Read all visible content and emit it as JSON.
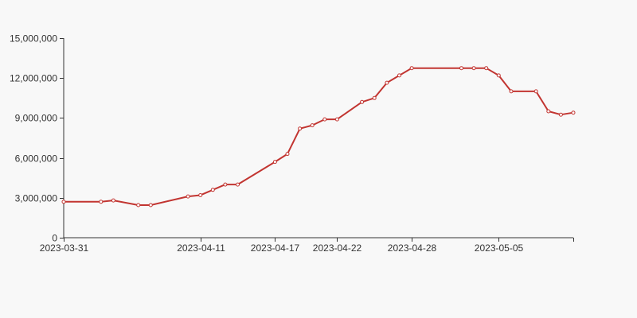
{
  "chart_data": {
    "type": "line",
    "title": "",
    "xlabel": "",
    "ylabel": "",
    "grid": false,
    "legend": "none",
    "ylim": [
      0,
      15000000
    ],
    "yticks": [
      0,
      3000000,
      6000000,
      9000000,
      12000000,
      15000000
    ],
    "ytick_labels": [
      "0",
      "3,000,000",
      "6,000,000",
      "9,000,000",
      "12,000,000",
      "15,000,000"
    ],
    "xlim": [
      "2023-03-31",
      "2023-05-11"
    ],
    "xticks": [
      "2023-03-31",
      "2023-04-11",
      "2023-04-17",
      "2023-04-22",
      "2023-04-28",
      "2023-05-05"
    ],
    "xtick_labels": [
      "2023-03-31",
      "2023-04-11",
      "2023-04-17",
      "2023-04-22",
      "2023-04-28",
      "2023-05-05"
    ],
    "series": [
      {
        "color": "#c23531",
        "x": [
          "2023-03-31",
          "2023-04-03",
          "2023-04-04",
          "2023-04-06",
          "2023-04-07",
          "2023-04-10",
          "2023-04-11",
          "2023-04-12",
          "2023-04-13",
          "2023-04-14",
          "2023-04-17",
          "2023-04-18",
          "2023-04-19",
          "2023-04-20",
          "2023-04-21",
          "2023-04-22",
          "2023-04-24",
          "2023-04-25",
          "2023-04-26",
          "2023-04-27",
          "2023-04-28",
          "2023-05-02",
          "2023-05-03",
          "2023-05-04",
          "2023-05-05",
          "2023-05-06",
          "2023-05-08",
          "2023-05-09",
          "2023-05-10",
          "2023-05-11"
        ],
        "values": [
          2700000,
          2700000,
          2800000,
          2450000,
          2450000,
          3100000,
          3200000,
          3600000,
          4000000,
          4000000,
          5700000,
          6300000,
          8200000,
          8450000,
          8900000,
          8900000,
          10200000,
          10500000,
          11650000,
          12200000,
          12750000,
          12750000,
          12750000,
          12750000,
          12200000,
          11000000,
          11000000,
          9500000,
          9250000,
          9400000
        ]
      }
    ]
  }
}
